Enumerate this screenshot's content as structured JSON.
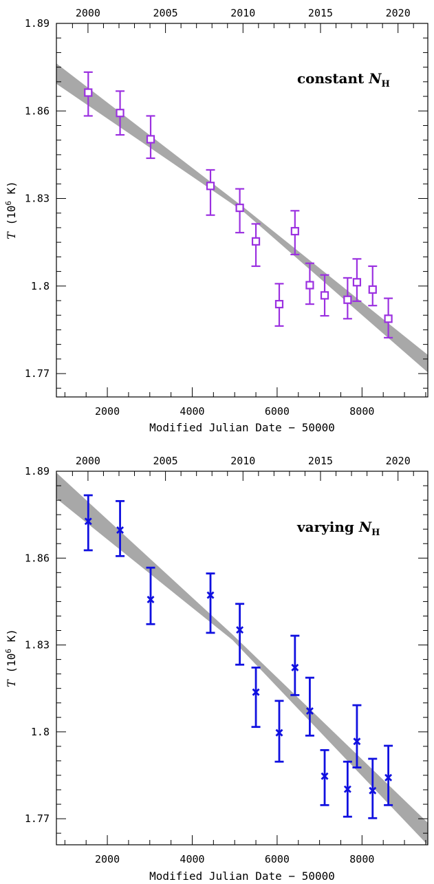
{
  "chart_data": [
    {
      "type": "scatter",
      "annotation": {
        "prefix": "constant ",
        "symbol": "N",
        "subscript": "H"
      },
      "xlabel": "Modified Julian Date − 50000",
      "ylabel": {
        "symbol": "T",
        "text": " (10",
        "sup": "6",
        "unit": " K)"
      },
      "xlim": [
        800,
        9550
      ],
      "ylim": [
        1.762,
        1.89
      ],
      "xticks": [
        2000,
        4000,
        6000,
        8000
      ],
      "yticks": [
        1.77,
        1.8,
        1.83,
        1.86,
        1.89
      ],
      "top_axis": {
        "labels": [
          "2000",
          "2005",
          "2010",
          "2015",
          "2020"
        ],
        "positions": [
          1544,
          3370,
          5196,
          7022,
          8848
        ]
      },
      "marker": "square",
      "color": "#9b30e0",
      "points": [
        {
          "x": 1550,
          "y": 1.8663,
          "lo": 1.8583,
          "hi": 1.8733
        },
        {
          "x": 2300,
          "y": 1.8593,
          "lo": 1.8518,
          "hi": 1.8668
        },
        {
          "x": 3020,
          "y": 1.8503,
          "lo": 1.8438,
          "hi": 1.8583
        },
        {
          "x": 4430,
          "y": 1.8343,
          "lo": 1.8243,
          "hi": 1.8398
        },
        {
          "x": 5120,
          "y": 1.8268,
          "lo": 1.8183,
          "hi": 1.8333
        },
        {
          "x": 5500,
          "y": 1.8153,
          "lo": 1.8068,
          "hi": 1.8213
        },
        {
          "x": 6050,
          "y": 1.7938,
          "lo": 1.7863,
          "hi": 1.8008
        },
        {
          "x": 6420,
          "y": 1.8188,
          "lo": 1.8108,
          "hi": 1.8258
        },
        {
          "x": 6770,
          "y": 1.8003,
          "lo": 1.7938,
          "hi": 1.8078
        },
        {
          "x": 7120,
          "y": 1.7968,
          "lo": 1.7898,
          "hi": 1.8038
        },
        {
          "x": 7660,
          "y": 1.7953,
          "lo": 1.7888,
          "hi": 1.8028
        },
        {
          "x": 7880,
          "y": 1.8013,
          "lo": 1.7948,
          "hi": 1.8093
        },
        {
          "x": 8250,
          "y": 1.7988,
          "lo": 1.7933,
          "hi": 1.8068
        },
        {
          "x": 8620,
          "y": 1.7888,
          "lo": 1.7823,
          "hi": 1.7958
        }
      ],
      "band": {
        "x": [
          800,
          5200,
          9550
        ],
        "upper": [
          1.8763,
          1.8271,
          1.7764
        ],
        "lower": [
          1.8693,
          1.8256,
          1.7704
        ]
      }
    },
    {
      "type": "scatter",
      "annotation": {
        "prefix": "varying ",
        "symbol": "N",
        "subscript": "H"
      },
      "xlabel": "Modified Julian Date − 50000",
      "ylabel": {
        "symbol": "T",
        "text": " (10",
        "sup": "6",
        "unit": " K)"
      },
      "xlim": [
        800,
        9550
      ],
      "ylim": [
        1.761,
        1.89
      ],
      "xticks": [
        2000,
        4000,
        6000,
        8000
      ],
      "yticks": [
        1.77,
        1.8,
        1.83,
        1.86,
        1.89
      ],
      "top_axis": {
        "labels": [
          "2000",
          "2005",
          "2010",
          "2015",
          "2020"
        ],
        "positions": [
          1544,
          3370,
          5196,
          7022,
          8848
        ]
      },
      "marker": "cross",
      "color": "#1010e0",
      "points": [
        {
          "x": 1550,
          "y": 1.8727,
          "lo": 1.8627,
          "hi": 1.8817
        },
        {
          "x": 2300,
          "y": 1.8697,
          "lo": 1.8607,
          "hi": 1.8797
        },
        {
          "x": 3020,
          "y": 1.8457,
          "lo": 1.8372,
          "hi": 1.8567
        },
        {
          "x": 4430,
          "y": 1.8472,
          "lo": 1.8342,
          "hi": 1.8547
        },
        {
          "x": 5120,
          "y": 1.8352,
          "lo": 1.8232,
          "hi": 1.8442
        },
        {
          "x": 5500,
          "y": 1.8137,
          "lo": 1.8017,
          "hi": 1.8222
        },
        {
          "x": 6050,
          "y": 1.7997,
          "lo": 1.7897,
          "hi": 1.8107
        },
        {
          "x": 6420,
          "y": 1.8222,
          "lo": 1.8127,
          "hi": 1.8332
        },
        {
          "x": 6770,
          "y": 1.8072,
          "lo": 1.7987,
          "hi": 1.8187
        },
        {
          "x": 7120,
          "y": 1.7847,
          "lo": 1.7747,
          "hi": 1.7937
        },
        {
          "x": 7660,
          "y": 1.7802,
          "lo": 1.7707,
          "hi": 1.7897
        },
        {
          "x": 7880,
          "y": 1.7967,
          "lo": 1.7877,
          "hi": 1.8092
        },
        {
          "x": 8250,
          "y": 1.7797,
          "lo": 1.7702,
          "hi": 1.7907
        },
        {
          "x": 8620,
          "y": 1.7842,
          "lo": 1.7747,
          "hi": 1.7952
        }
      ],
      "band": {
        "x": [
          800,
          4950,
          9550
        ],
        "upper": [
          1.8895,
          1.8336,
          1.7686
        ],
        "lower": [
          1.8806,
          1.8317,
          1.7609
        ]
      }
    }
  ]
}
